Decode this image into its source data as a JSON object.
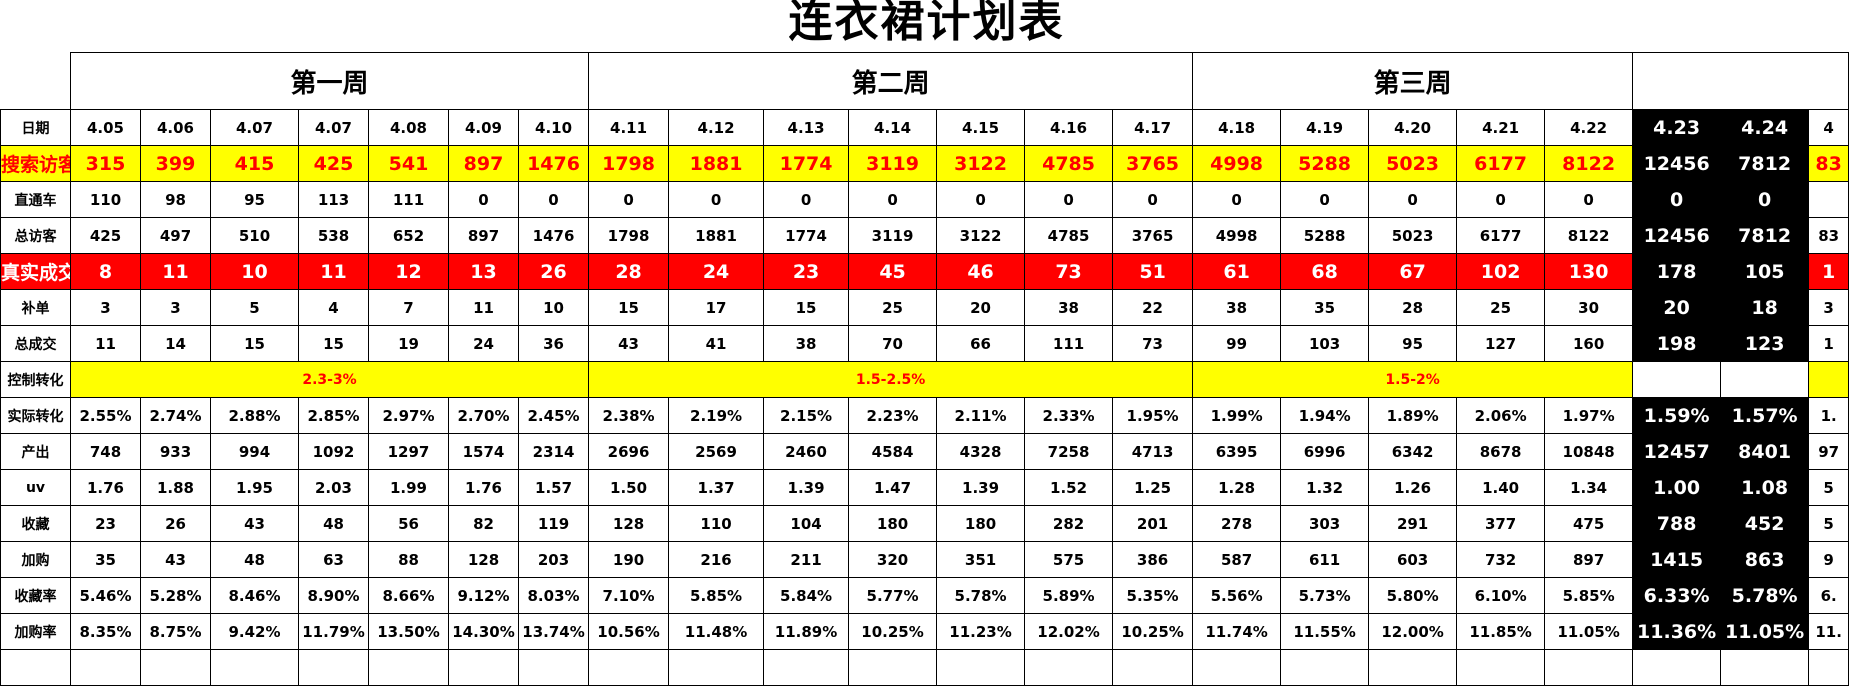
{
  "title": "连衣裙计划表",
  "weeks": [
    {
      "label": "第一周",
      "span": 7
    },
    {
      "label": "第二周",
      "span": 7
    },
    {
      "label": "第三周",
      "span": 5
    }
  ],
  "columns": [
    "4.05",
    "4.06",
    "4.07",
    "4.07",
    "4.08",
    "4.09",
    "4.10",
    "4.11",
    "4.12",
    "4.13",
    "4.14",
    "4.15",
    "4.16",
    "4.17",
    "4.18",
    "4.19",
    "4.20",
    "4.21",
    "4.22",
    "4.23",
    "4.24",
    "4"
  ],
  "highlight_columns": [
    19,
    20
  ],
  "rows": [
    {
      "key": "search",
      "label": "搜索访客",
      "style": "big yellow",
      "values": [
        "315",
        "399",
        "415",
        "425",
        "541",
        "897",
        "1476",
        "1798",
        "1881",
        "1774",
        "3119",
        "3122",
        "4785",
        "3765",
        "4998",
        "5288",
        "5023",
        "6177",
        "8122",
        "12456",
        "7812",
        "83"
      ]
    },
    {
      "key": "ztc",
      "label": "直通车",
      "style": "",
      "values": [
        "110",
        "98",
        "95",
        "113",
        "111",
        "0",
        "0",
        "0",
        "0",
        "0",
        "0",
        "0",
        "0",
        "0",
        "0",
        "0",
        "0",
        "0",
        "0",
        "0",
        "0",
        ""
      ]
    },
    {
      "key": "total_visitors",
      "label": "总访客",
      "style": "",
      "values": [
        "425",
        "497",
        "510",
        "538",
        "652",
        "897",
        "1476",
        "1798",
        "1881",
        "1774",
        "3119",
        "3122",
        "4785",
        "3765",
        "4998",
        "5288",
        "5023",
        "6177",
        "8122",
        "12456",
        "7812",
        "83"
      ]
    },
    {
      "key": "real_deals",
      "label": "真实成交",
      "style": "big red",
      "values": [
        "8",
        "11",
        "10",
        "11",
        "12",
        "13",
        "26",
        "28",
        "24",
        "23",
        "45",
        "46",
        "73",
        "51",
        "61",
        "68",
        "67",
        "102",
        "130",
        "178",
        "105",
        "1"
      ]
    },
    {
      "key": "supplement",
      "label": "补单",
      "style": "",
      "values": [
        "3",
        "3",
        "5",
        "4",
        "7",
        "11",
        "10",
        "15",
        "17",
        "15",
        "25",
        "20",
        "38",
        "22",
        "38",
        "35",
        "28",
        "25",
        "30",
        "20",
        "18",
        "3"
      ]
    },
    {
      "key": "total_deals",
      "label": "总成交",
      "style": "",
      "values": [
        "11",
        "14",
        "15",
        "15",
        "19",
        "24",
        "36",
        "43",
        "41",
        "38",
        "70",
        "66",
        "111",
        "73",
        "99",
        "103",
        "95",
        "127",
        "160",
        "198",
        "123",
        "1"
      ]
    }
  ],
  "control": {
    "label": "控制转化",
    "bands": [
      "2.3-3%",
      "1.5-2.5%",
      "1.5-2%"
    ]
  },
  "rows2": [
    {
      "key": "actual_conv",
      "label": "实际转化",
      "style": "",
      "values": [
        "2.55%",
        "2.74%",
        "2.88%",
        "2.85%",
        "2.97%",
        "2.70%",
        "2.45%",
        "2.38%",
        "2.19%",
        "2.15%",
        "2.23%",
        "2.11%",
        "2.33%",
        "1.95%",
        "1.99%",
        "1.94%",
        "1.89%",
        "2.06%",
        "1.97%",
        "1.59%",
        "1.57%",
        "1."
      ]
    },
    {
      "key": "output",
      "label": "产出",
      "style": "",
      "values": [
        "748",
        "933",
        "994",
        "1092",
        "1297",
        "1574",
        "2314",
        "2696",
        "2569",
        "2460",
        "4584",
        "4328",
        "7258",
        "4713",
        "6395",
        "6996",
        "6342",
        "8678",
        "10848",
        "12457",
        "8401",
        "97"
      ]
    },
    {
      "key": "uv",
      "label": "uv",
      "style": "",
      "values": [
        "1.76",
        "1.88",
        "1.95",
        "2.03",
        "1.99",
        "1.76",
        "1.57",
        "1.50",
        "1.37",
        "1.39",
        "1.47",
        "1.39",
        "1.52",
        "1.25",
        "1.28",
        "1.32",
        "1.26",
        "1.40",
        "1.34",
        "1.00",
        "1.08",
        "5"
      ]
    },
    {
      "key": "favorites",
      "label": "收藏",
      "style": "",
      "values": [
        "23",
        "26",
        "43",
        "48",
        "56",
        "82",
        "119",
        "128",
        "110",
        "104",
        "180",
        "180",
        "282",
        "201",
        "278",
        "303",
        "291",
        "377",
        "475",
        "788",
        "452",
        "5"
      ]
    },
    {
      "key": "add_cart",
      "label": "加购",
      "style": "",
      "values": [
        "35",
        "43",
        "48",
        "63",
        "88",
        "128",
        "203",
        "190",
        "216",
        "211",
        "320",
        "351",
        "575",
        "386",
        "587",
        "611",
        "603",
        "732",
        "897",
        "1415",
        "863",
        "9"
      ]
    },
    {
      "key": "fav_rate",
      "label": "收藏率",
      "style": "",
      "values": [
        "5.46%",
        "5.28%",
        "8.46%",
        "8.90%",
        "8.66%",
        "9.12%",
        "8.03%",
        "7.10%",
        "5.85%",
        "5.84%",
        "5.77%",
        "5.78%",
        "5.89%",
        "5.35%",
        "5.56%",
        "5.73%",
        "5.80%",
        "6.10%",
        "5.85%",
        "6.33%",
        "5.78%",
        "6."
      ]
    },
    {
      "key": "cart_rate",
      "label": "加购率",
      "style": "",
      "values": [
        "8.35%",
        "8.75%",
        "9.42%",
        "11.79%",
        "13.50%",
        "14.30%",
        "13.74%",
        "10.56%",
        "11.48%",
        "11.89%",
        "10.25%",
        "11.23%",
        "12.02%",
        "10.25%",
        "11.74%",
        "11.55%",
        "12.00%",
        "11.85%",
        "11.05%",
        "11.36%",
        "11.05%",
        "11."
      ]
    }
  ],
  "date_row_label": "日期"
}
